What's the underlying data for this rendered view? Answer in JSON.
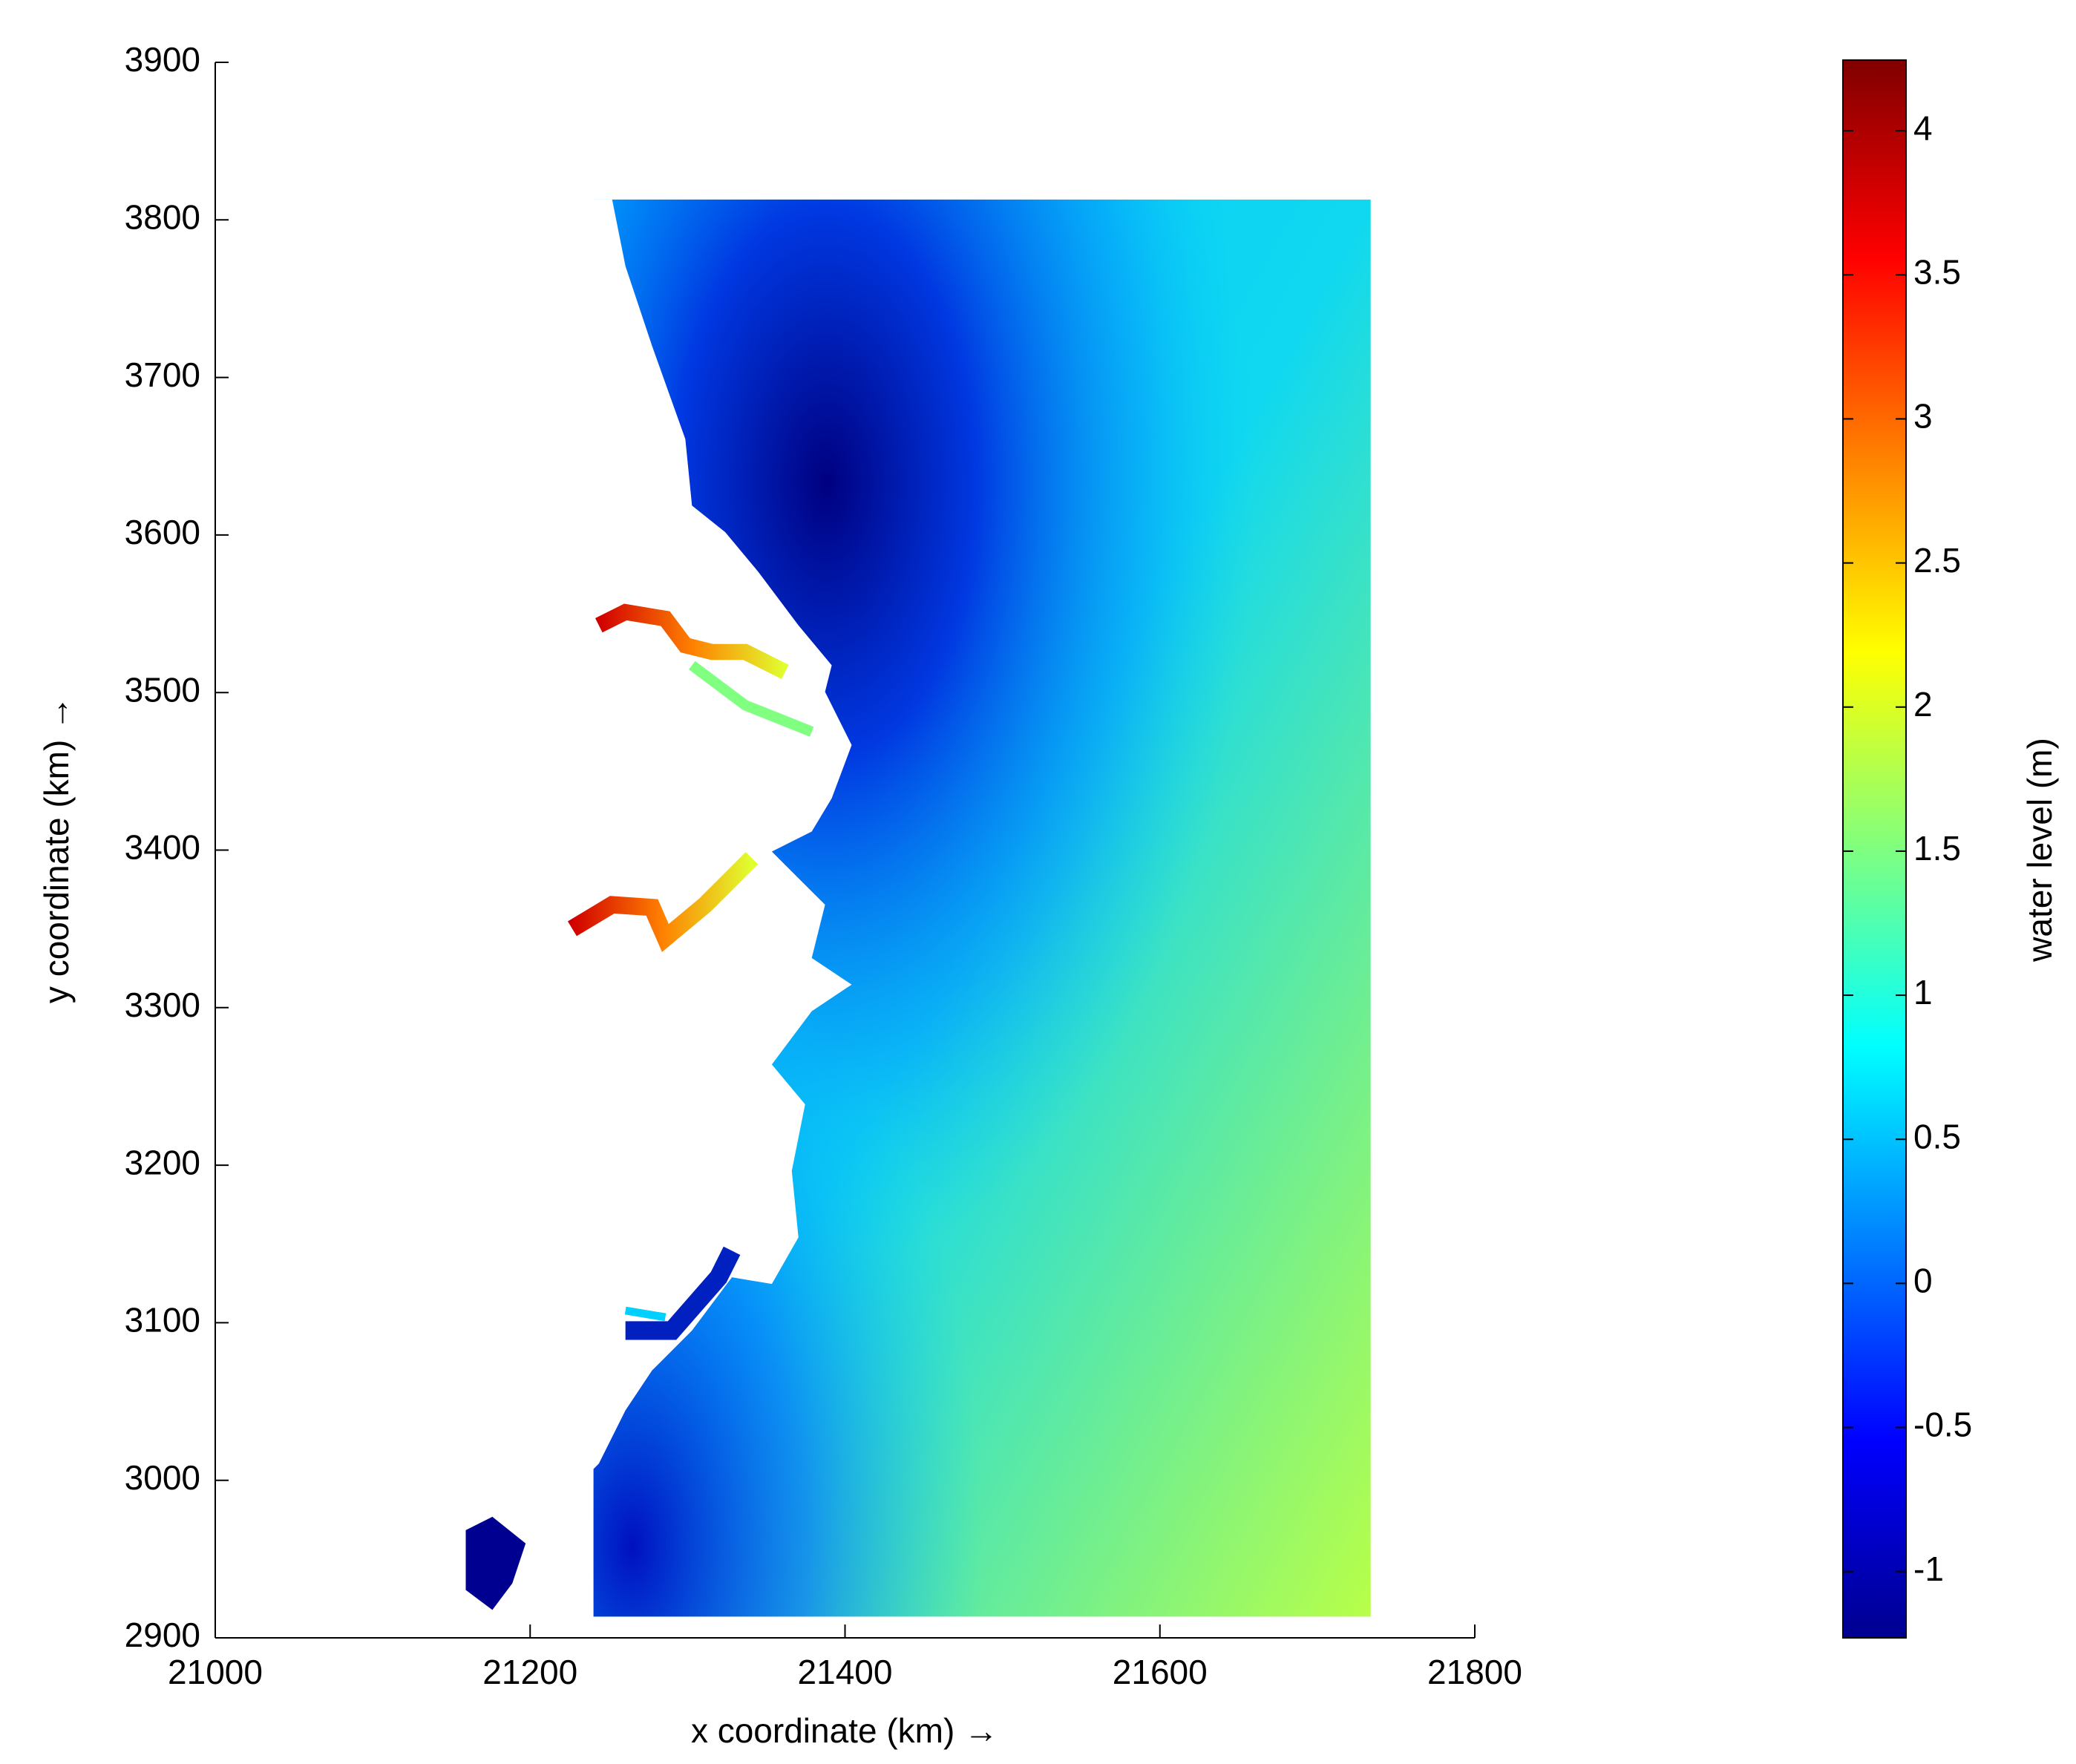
{
  "chart_data": {
    "type": "contourf",
    "xlabel": "x coordinate (km) →",
    "ylabel": "y coordinate (km) →",
    "xlim": [
      21000,
      21800
    ],
    "xticks": [
      21000,
      21200,
      21400,
      21600,
      21800
    ],
    "ylim": [
      2900,
      3900
    ],
    "yticks": [
      2900,
      3000,
      3100,
      3200,
      3300,
      3400,
      3500,
      3600,
      3700,
      3800,
      3900
    ],
    "colorbar": {
      "label": "water level (m)",
      "colormap": "jet",
      "lim": [
        -1.23,
        4.245
      ],
      "ticks": [
        -1,
        -0.5,
        0,
        0.5,
        1,
        1.5,
        2,
        2.5,
        3,
        3.5,
        4
      ]
    }
  }
}
